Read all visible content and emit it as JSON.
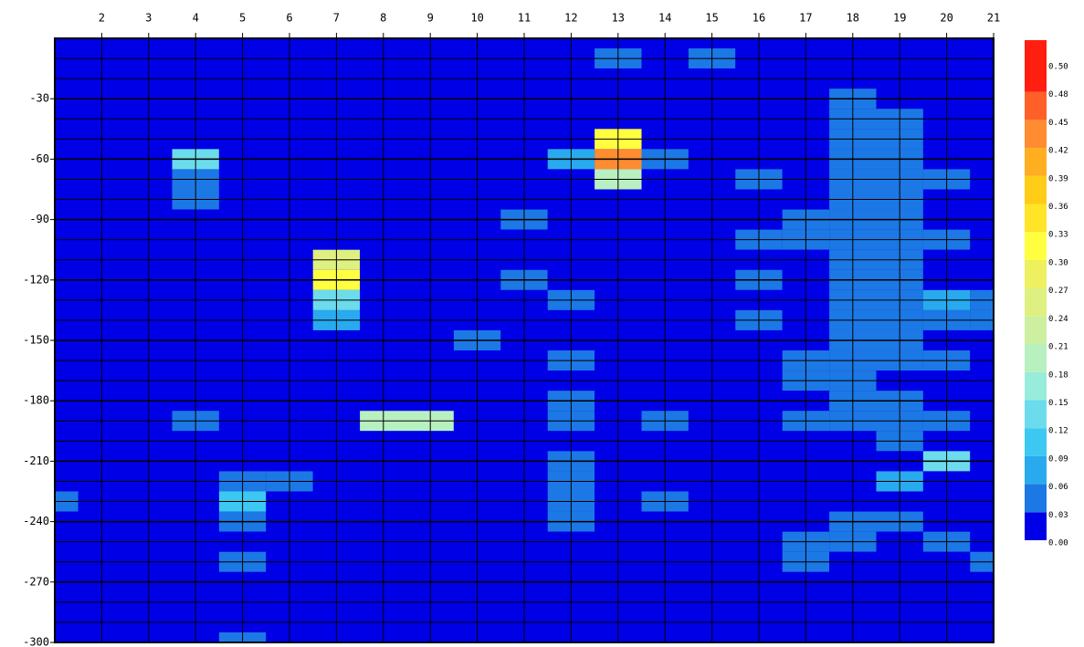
{
  "chart_data": {
    "type": "contour",
    "x": [
      1,
      2,
      3,
      4,
      5,
      6,
      7,
      8,
      9,
      10,
      11,
      12,
      13,
      14,
      15,
      16,
      17,
      18,
      19,
      20,
      21
    ],
    "y": [
      0,
      -10,
      -20,
      -30,
      -40,
      -50,
      -60,
      -70,
      -80,
      -90,
      -100,
      -110,
      -120,
      -130,
      -140,
      -150,
      -160,
      -170,
      -180,
      -190,
      -200,
      -210,
      -220,
      -230,
      -240,
      -250,
      -260,
      -270,
      -280,
      -290,
      -300
    ],
    "z": [
      [
        0,
        0,
        0,
        0,
        0,
        0,
        0,
        0,
        0,
        0,
        0,
        0,
        0,
        0,
        0,
        0,
        0,
        0,
        0,
        0,
        0
      ],
      [
        0,
        0,
        0,
        0,
        0,
        0,
        0,
        0,
        0,
        0,
        0,
        0,
        0.04,
        0,
        0.04,
        0,
        0,
        0,
        0,
        0,
        0
      ],
      [
        0,
        0,
        0,
        0,
        0,
        0,
        0,
        0,
        0,
        0,
        0,
        0,
        0,
        0,
        0,
        0,
        0,
        0,
        0,
        0,
        0
      ],
      [
        0,
        0,
        0,
        0,
        0,
        0,
        0,
        0,
        0,
        0,
        0,
        0,
        0,
        0,
        0,
        0,
        0,
        0.04,
        0,
        0,
        0
      ],
      [
        0,
        0,
        0,
        0,
        0,
        0,
        0,
        0,
        0,
        0,
        0,
        0,
        0,
        0,
        0,
        0,
        0,
        0.04,
        0.04,
        0,
        0
      ],
      [
        0,
        0,
        0,
        0,
        0,
        0,
        0,
        0,
        0,
        0,
        0,
        0,
        0.3,
        0,
        0,
        0,
        0,
        0.04,
        0.04,
        0,
        0
      ],
      [
        0,
        0,
        0,
        0.12,
        0,
        0,
        0,
        0,
        0,
        0,
        0,
        0.06,
        0.42,
        0.05,
        0,
        0,
        0,
        0.04,
        0.04,
        0,
        0
      ],
      [
        0,
        0,
        0,
        0.05,
        0,
        0,
        0,
        0,
        0,
        0,
        0,
        0,
        0.2,
        0,
        0,
        0.04,
        0,
        0.04,
        0.04,
        0.04,
        0
      ],
      [
        0,
        0,
        0,
        0.04,
        0,
        0,
        0,
        0,
        0,
        0,
        0,
        0,
        0,
        0,
        0,
        0,
        0,
        0.04,
        0.04,
        0,
        0
      ],
      [
        0,
        0,
        0,
        0,
        0,
        0,
        0,
        0,
        0,
        0,
        0.05,
        0,
        0,
        0,
        0,
        0,
        0.04,
        0.04,
        0.04,
        0,
        0
      ],
      [
        0,
        0,
        0,
        0,
        0,
        0,
        0,
        0,
        0,
        0,
        0,
        0,
        0,
        0,
        0,
        0.04,
        0.04,
        0.04,
        0.04,
        0.04,
        0
      ],
      [
        0,
        0,
        0,
        0,
        0,
        0,
        0.25,
        0,
        0,
        0,
        0,
        0,
        0,
        0,
        0,
        0,
        0,
        0.04,
        0.04,
        0,
        0
      ],
      [
        0,
        0,
        0,
        0,
        0,
        0,
        0.3,
        0,
        0,
        0,
        0.03,
        0,
        0,
        0,
        0,
        0.04,
        0,
        0.04,
        0.04,
        0,
        0
      ],
      [
        0,
        0,
        0,
        0,
        0,
        0,
        0.12,
        0,
        0,
        0,
        0,
        0.03,
        0,
        0,
        0,
        0,
        0,
        0.04,
        0.04,
        0.06,
        0.04
      ],
      [
        0,
        0,
        0,
        0,
        0,
        0,
        0.06,
        0,
        0,
        0,
        0,
        0,
        0,
        0,
        0,
        0.04,
        0,
        0.04,
        0.04,
        0.04,
        0.04
      ],
      [
        0,
        0,
        0,
        0,
        0,
        0,
        0,
        0,
        0,
        0.04,
        0,
        0,
        0,
        0,
        0,
        0,
        0,
        0.04,
        0.04,
        0,
        0
      ],
      [
        0,
        0,
        0,
        0,
        0,
        0,
        0,
        0,
        0,
        0,
        0,
        0.04,
        0,
        0,
        0,
        0,
        0.04,
        0.04,
        0.04,
        0.04,
        0
      ],
      [
        0,
        0,
        0,
        0,
        0,
        0,
        0,
        0,
        0,
        0,
        0,
        0,
        0,
        0,
        0,
        0,
        0.04,
        0.04,
        0,
        0,
        0
      ],
      [
        0,
        0,
        0,
        0,
        0,
        0,
        0,
        0,
        0,
        0,
        0,
        0.04,
        0,
        0,
        0,
        0,
        0,
        0.04,
        0.04,
        0,
        0
      ],
      [
        0,
        0,
        0,
        0.04,
        0,
        0,
        0,
        0.2,
        0.18,
        0,
        0,
        0.04,
        0,
        0.04,
        0,
        0,
        0.04,
        0.04,
        0.04,
        0.04,
        0
      ],
      [
        0,
        0,
        0,
        0,
        0,
        0,
        0,
        0,
        0,
        0,
        0,
        0,
        0,
        0,
        0,
        0,
        0,
        0,
        0.04,
        0,
        0
      ],
      [
        0,
        0,
        0,
        0,
        0,
        0,
        0,
        0,
        0,
        0,
        0,
        0.04,
        0,
        0,
        0,
        0,
        0,
        0,
        0,
        0.12,
        0
      ],
      [
        0,
        0,
        0,
        0,
        0.05,
        0.03,
        0,
        0,
        0,
        0,
        0,
        0.04,
        0,
        0,
        0,
        0,
        0,
        0,
        0.08,
        0,
        0
      ],
      [
        0.04,
        0,
        0,
        0,
        0.1,
        0,
        0,
        0,
        0,
        0,
        0,
        0.04,
        0,
        0.03,
        0,
        0,
        0,
        0,
        0,
        0,
        0
      ],
      [
        0,
        0,
        0,
        0,
        0.04,
        0,
        0,
        0,
        0,
        0,
        0,
        0.04,
        0,
        0,
        0,
        0,
        0,
        0.04,
        0.04,
        0,
        0
      ],
      [
        0,
        0,
        0,
        0,
        0,
        0,
        0,
        0,
        0,
        0,
        0,
        0,
        0,
        0,
        0,
        0,
        0.04,
        0.04,
        0,
        0.04,
        0
      ],
      [
        0,
        0,
        0,
        0,
        0.04,
        0,
        0,
        0,
        0,
        0,
        0,
        0,
        0,
        0,
        0,
        0,
        0.04,
        0,
        0,
        0,
        0.04
      ],
      [
        0,
        0,
        0,
        0,
        0,
        0,
        0,
        0,
        0,
        0,
        0,
        0,
        0,
        0,
        0,
        0,
        0,
        0,
        0,
        0,
        0
      ],
      [
        0,
        0,
        0,
        0,
        0,
        0,
        0,
        0,
        0,
        0,
        0,
        0,
        0,
        0,
        0,
        0,
        0,
        0,
        0,
        0,
        0
      ],
      [
        0,
        0,
        0,
        0,
        0,
        0,
        0,
        0,
        0,
        0,
        0,
        0,
        0,
        0,
        0,
        0,
        0,
        0,
        0,
        0,
        0
      ],
      [
        0,
        0,
        0,
        0,
        0.04,
        0,
        0,
        0,
        0,
        0,
        0,
        0,
        0,
        0,
        0,
        0,
        0,
        0,
        0,
        0,
        0
      ]
    ],
    "xlim": [
      1,
      21
    ],
    "ylim": [
      -300,
      0
    ],
    "xticks": [
      2,
      3,
      4,
      5,
      6,
      7,
      8,
      9,
      10,
      11,
      12,
      13,
      14,
      15,
      16,
      17,
      18,
      19,
      20,
      21
    ],
    "yticks": [
      -30,
      -60,
      -90,
      -120,
      -150,
      -180,
      -210,
      -240,
      -270,
      -300
    ],
    "levels": [
      {
        "value": 0,
        "label": "0.00"
      },
      0.03,
      0.06,
      0.09,
      0.12,
      0.15,
      0.18,
      0.21,
      0.24,
      0.27,
      {
        "value": 0.3,
        "label": "0.30"
      },
      0.33,
      0.36,
      0.39,
      0.42,
      0.45,
      0.48,
      {
        "value": 0.5,
        "label": "0.50"
      }
    ],
    "colors": [
      "#0000e6",
      "#1c78e4",
      "#29aaee",
      "#3cc8f2",
      "#6cdcec",
      "#98ecdc",
      "#b8f0c0",
      "#ccf0a0",
      "#ddf080",
      "#eef060",
      "#ffff40",
      "#ffe428",
      "#ffcc18",
      "#ffae20",
      "#ff8c30",
      "#ff6028",
      "#ff1e10"
    ],
    "grid": true
  }
}
